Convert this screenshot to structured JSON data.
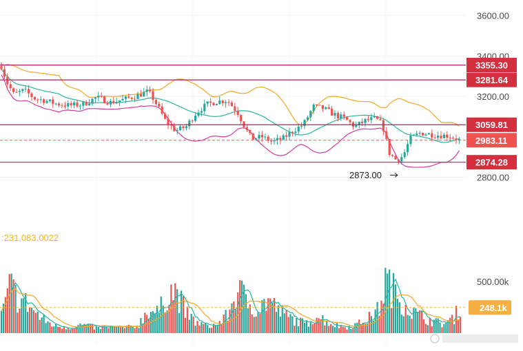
{
  "chart_data": {
    "type": "candlestick",
    "price_axis": {
      "range": [
        2720,
        3650
      ],
      "ticks": [
        "3600.00",
        "3400.00",
        "3200.00",
        "2800.00"
      ]
    },
    "volume_axis": {
      "range": [
        0,
        840000
      ],
      "ticks": [
        "500.00k"
      ]
    },
    "level_lines": [
      {
        "label": "3355.30",
        "value": 3355.3
      },
      {
        "label": "3281.64",
        "value": 3281.64
      },
      {
        "label": "3059.81",
        "value": 3059.81
      },
      {
        "label": "2874.28",
        "value": 2874.28
      }
    ],
    "current_price": {
      "label": "2983.11",
      "value": 2983.11
    },
    "current_volume": {
      "label": "248.1k",
      "value": 248100
    },
    "volume_readout": ":231,083.0022",
    "low_annotation": {
      "label": "2873.00",
      "value": 2873.0
    },
    "colors": {
      "up": "#26a69a",
      "down": "#ef5350",
      "level_line": "#c2185b",
      "tag": "#d32f3f",
      "current_tag": "#ef5350",
      "volume_tag": "#f5b041",
      "band_upper": "#f5a623",
      "band_middle": "#26b5a0",
      "band_lower": "#d63aa0"
    },
    "price_anchors": [
      [
        0,
        3370
      ],
      [
        10,
        3270
      ],
      [
        20,
        3210
      ],
      [
        35,
        3230
      ],
      [
        50,
        3190
      ],
      [
        65,
        3180
      ],
      [
        80,
        3165
      ],
      [
        100,
        3155
      ],
      [
        120,
        3160
      ],
      [
        140,
        3195
      ],
      [
        160,
        3170
      ],
      [
        180,
        3185
      ],
      [
        200,
        3205
      ],
      [
        215,
        3225
      ],
      [
        225,
        3175
      ],
      [
        240,
        3080
      ],
      [
        255,
        3030
      ],
      [
        270,
        3050
      ],
      [
        285,
        3120
      ],
      [
        300,
        3160
      ],
      [
        315,
        3175
      ],
      [
        330,
        3180
      ],
      [
        345,
        3120
      ],
      [
        355,
        3050
      ],
      [
        365,
        2990
      ],
      [
        380,
        3000
      ],
      [
        395,
        2975
      ],
      [
        410,
        2990
      ],
      [
        425,
        3030
      ],
      [
        440,
        3060
      ],
      [
        455,
        3150
      ],
      [
        470,
        3140
      ],
      [
        485,
        3110
      ],
      [
        500,
        3090
      ],
      [
        515,
        3050
      ],
      [
        530,
        3080
      ],
      [
        545,
        3090
      ],
      [
        555,
        3060
      ],
      [
        565,
        2920
      ],
      [
        575,
        2885
      ],
      [
        585,
        2905
      ],
      [
        595,
        2990
      ],
      [
        610,
        3020
      ],
      [
        630,
        3010
      ],
      [
        650,
        3005
      ],
      [
        660,
        2995
      ],
      [
        668,
        2980
      ]
    ],
    "volume_anchors": [
      [
        0,
        120000
      ],
      [
        15,
        460000
      ],
      [
        25,
        340000
      ],
      [
        40,
        280000
      ],
      [
        60,
        140000
      ],
      [
        80,
        70000
      ],
      [
        100,
        55000
      ],
      [
        120,
        80000
      ],
      [
        140,
        50000
      ],
      [
        160,
        60000
      ],
      [
        180,
        50000
      ],
      [
        200,
        70000
      ],
      [
        215,
        230000
      ],
      [
        230,
        190000
      ],
      [
        245,
        420000
      ],
      [
        258,
        380000
      ],
      [
        270,
        190000
      ],
      [
        285,
        100000
      ],
      [
        300,
        70000
      ],
      [
        315,
        80000
      ],
      [
        330,
        170000
      ],
      [
        345,
        420000
      ],
      [
        360,
        300000
      ],
      [
        375,
        230000
      ],
      [
        390,
        330000
      ],
      [
        400,
        240000
      ],
      [
        415,
        170000
      ],
      [
        430,
        120000
      ],
      [
        445,
        90000
      ],
      [
        460,
        170000
      ],
      [
        475,
        110000
      ],
      [
        490,
        70000
      ],
      [
        505,
        60000
      ],
      [
        520,
        90000
      ],
      [
        535,
        140000
      ],
      [
        550,
        230000
      ],
      [
        560,
        520000
      ],
      [
        570,
        420000
      ],
      [
        585,
        300000
      ],
      [
        600,
        200000
      ],
      [
        615,
        150000
      ],
      [
        630,
        110000
      ],
      [
        645,
        90000
      ],
      [
        660,
        150000
      ],
      [
        667,
        270000
      ]
    ]
  }
}
